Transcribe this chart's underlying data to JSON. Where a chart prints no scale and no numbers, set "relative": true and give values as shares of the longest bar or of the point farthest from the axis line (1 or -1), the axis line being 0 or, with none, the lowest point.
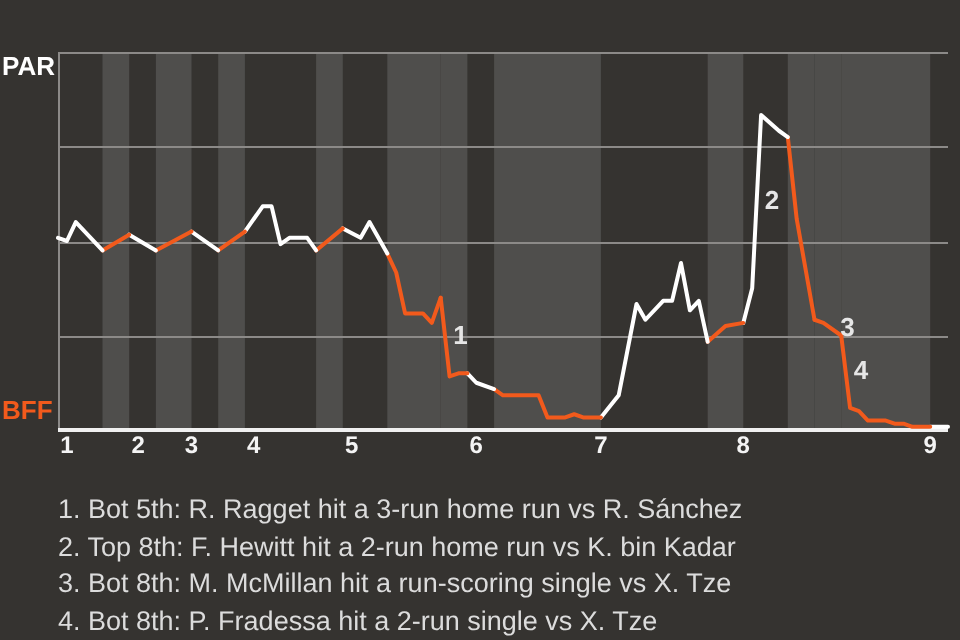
{
  "chart_data": {
    "type": "line",
    "relative": true,
    "categories": [
      null,
      "1",
      null,
      null,
      null,
      null,
      null,
      null,
      null,
      "2",
      null,
      null,
      null,
      null,
      null,
      "3",
      null,
      null,
      null,
      null,
      null,
      null,
      "4",
      null,
      null,
      null,
      null,
      null,
      null,
      null,
      null,
      null,
      null,
      "5",
      null,
      null,
      null,
      null,
      null,
      null,
      null,
      null,
      null,
      null,
      null,
      null,
      null,
      "6",
      null,
      null,
      null,
      null,
      null,
      null,
      null,
      null,
      null,
      null,
      null,
      null,
      null,
      "7",
      null,
      null,
      null,
      null,
      null,
      null,
      null,
      null,
      null,
      null,
      null,
      null,
      null,
      null,
      null,
      "8",
      null,
      null,
      null,
      null,
      null,
      null,
      null,
      null,
      null,
      null,
      null,
      null,
      null,
      null,
      null,
      null,
      null,
      null,
      null,
      null,
      "9",
      null,
      null
    ],
    "grid": "y",
    "legend": false,
    "marker": "none",
    "line_style": "solid",
    "series": [
      {
        "color": "#ffffff",
        "values": [
          0.61,
          0.6,
          0.66,
          null,
          null,
          0.57,
          null,
          null,
          null,
          null,
          null,
          null,
          null,
          null,
          null,
          null,
          null,
          null,
          null,
          null,
          null,
          null,
          null,
          null,
          null,
          null,
          null,
          null,
          null,
          null,
          null,
          null,
          null,
          null,
          null,
          null,
          null,
          null,
          null,
          null,
          null,
          null,
          null,
          null,
          null,
          null,
          null,
          null,
          null,
          null,
          null,
          null,
          null,
          null,
          null,
          null,
          null,
          null,
          null,
          null,
          null,
          null,
          null,
          null,
          null,
          null,
          null,
          null,
          null,
          null,
          null,
          null,
          null,
          null,
          null,
          null,
          null,
          null,
          null,
          null,
          null,
          null,
          null,
          null,
          null,
          null,
          null,
          null,
          null,
          null,
          null,
          null,
          null,
          null,
          null,
          null,
          null,
          null,
          null,
          null,
          null
        ]
      },
      {
        "color": "#f25a1c",
        "values": [
          null,
          null,
          null,
          null,
          null,
          0.57,
          null,
          null,
          0.62,
          null,
          null,
          null,
          null,
          null,
          null,
          null,
          null,
          null,
          null,
          null,
          null,
          null,
          null,
          null,
          null,
          null,
          null,
          null,
          null,
          null,
          null,
          null,
          null,
          null,
          null,
          null,
          null,
          null,
          null,
          null,
          null,
          null,
          null,
          null,
          null,
          null,
          null,
          null,
          null,
          null,
          null,
          null,
          null,
          null,
          null,
          null,
          null,
          null,
          null,
          null,
          null,
          null,
          null,
          null,
          null,
          null,
          null,
          null,
          null,
          null,
          null,
          null,
          null,
          null,
          null,
          null,
          null,
          null,
          null,
          null,
          null,
          null,
          null,
          null,
          null,
          null,
          null,
          null,
          null,
          null,
          null,
          null,
          null,
          null,
          null,
          null,
          null,
          null,
          null,
          null,
          null
        ]
      },
      {
        "color": "#ffffff",
        "values": [
          null,
          null,
          null,
          null,
          null,
          null,
          null,
          null,
          0.62,
          null,
          null,
          0.57,
          null,
          null,
          null,
          null,
          null,
          null,
          null,
          null,
          null,
          null,
          null,
          null,
          null,
          null,
          null,
          null,
          null,
          null,
          null,
          null,
          null,
          null,
          null,
          null,
          null,
          null,
          null,
          null,
          null,
          null,
          null,
          null,
          null,
          null,
          null,
          null,
          null,
          null,
          null,
          null,
          null,
          null,
          null,
          null,
          null,
          null,
          null,
          null,
          null,
          null,
          null,
          null,
          null,
          null,
          null,
          null,
          null,
          null,
          null,
          null,
          null,
          null,
          null,
          null,
          null,
          null,
          null,
          null,
          null,
          null,
          null,
          null,
          null,
          null,
          null,
          null,
          null,
          null,
          null,
          null,
          null,
          null,
          null,
          null,
          null,
          null,
          null,
          null,
          null
        ]
      },
      {
        "color": "#f25a1c",
        "values": [
          null,
          null,
          null,
          null,
          null,
          null,
          null,
          null,
          null,
          null,
          null,
          0.57,
          null,
          null,
          null,
          0.63,
          null,
          null,
          null,
          null,
          null,
          null,
          null,
          null,
          null,
          null,
          null,
          null,
          null,
          null,
          null,
          null,
          null,
          null,
          null,
          null,
          null,
          null,
          null,
          null,
          null,
          null,
          null,
          null,
          null,
          null,
          null,
          null,
          null,
          null,
          null,
          null,
          null,
          null,
          null,
          null,
          null,
          null,
          null,
          null,
          null,
          null,
          null,
          null,
          null,
          null,
          null,
          null,
          null,
          null,
          null,
          null,
          null,
          null,
          null,
          null,
          null,
          null,
          null,
          null,
          null,
          null,
          null,
          null,
          null,
          null,
          null,
          null,
          null,
          null,
          null,
          null,
          null,
          null,
          null,
          null,
          null,
          null,
          null,
          null,
          null
        ]
      },
      {
        "color": "#ffffff",
        "values": [
          null,
          null,
          null,
          null,
          null,
          null,
          null,
          null,
          null,
          null,
          null,
          null,
          null,
          null,
          null,
          0.63,
          null,
          null,
          0.57,
          null,
          null,
          null,
          null,
          null,
          null,
          null,
          null,
          null,
          null,
          null,
          null,
          null,
          null,
          null,
          null,
          null,
          null,
          null,
          null,
          null,
          null,
          null,
          null,
          null,
          null,
          null,
          null,
          null,
          null,
          null,
          null,
          null,
          null,
          null,
          null,
          null,
          null,
          null,
          null,
          null,
          null,
          null,
          null,
          null,
          null,
          null,
          null,
          null,
          null,
          null,
          null,
          null,
          null,
          null,
          null,
          null,
          null,
          null,
          null,
          null,
          null,
          null,
          null,
          null,
          null,
          null,
          null,
          null,
          null,
          null,
          null,
          null,
          null,
          null,
          null,
          null,
          null,
          null,
          null,
          null,
          null
        ]
      },
      {
        "color": "#f25a1c",
        "values": [
          null,
          null,
          null,
          null,
          null,
          null,
          null,
          null,
          null,
          null,
          null,
          null,
          null,
          null,
          null,
          null,
          null,
          null,
          0.57,
          null,
          null,
          0.63,
          null,
          null,
          null,
          null,
          null,
          null,
          null,
          null,
          null,
          null,
          null,
          null,
          null,
          null,
          null,
          null,
          null,
          null,
          null,
          null,
          null,
          null,
          null,
          null,
          null,
          null,
          null,
          null,
          null,
          null,
          null,
          null,
          null,
          null,
          null,
          null,
          null,
          null,
          null,
          null,
          null,
          null,
          null,
          null,
          null,
          null,
          null,
          null,
          null,
          null,
          null,
          null,
          null,
          null,
          null,
          null,
          null,
          null,
          null,
          null,
          null,
          null,
          null,
          null,
          null,
          null,
          null,
          null,
          null,
          null,
          null,
          null,
          null,
          null,
          null,
          null,
          null,
          null,
          null
        ]
      },
      {
        "color": "#ffffff",
        "values": [
          null,
          null,
          null,
          null,
          null,
          null,
          null,
          null,
          null,
          null,
          null,
          null,
          null,
          null,
          null,
          null,
          null,
          null,
          null,
          null,
          null,
          0.63,
          null,
          0.71,
          0.71,
          0.59,
          0.61,
          null,
          0.61,
          0.57,
          null,
          null,
          null,
          null,
          null,
          null,
          null,
          null,
          null,
          null,
          null,
          null,
          null,
          null,
          null,
          null,
          null,
          null,
          null,
          null,
          null,
          null,
          null,
          null,
          null,
          null,
          null,
          null,
          null,
          null,
          null,
          null,
          null,
          null,
          null,
          null,
          null,
          null,
          null,
          null,
          null,
          null,
          null,
          null,
          null,
          null,
          null,
          null,
          null,
          null,
          null,
          null,
          null,
          null,
          null,
          null,
          null,
          null,
          null,
          null,
          null,
          null,
          null,
          null,
          null,
          null,
          null,
          null,
          null,
          null,
          null
        ]
      },
      {
        "color": "#f25a1c",
        "values": [
          null,
          null,
          null,
          null,
          null,
          null,
          null,
          null,
          null,
          null,
          null,
          null,
          null,
          null,
          null,
          null,
          null,
          null,
          null,
          null,
          null,
          null,
          null,
          null,
          null,
          null,
          null,
          null,
          null,
          0.57,
          null,
          null,
          0.64,
          null,
          null,
          null,
          null,
          null,
          null,
          null,
          null,
          null,
          null,
          null,
          null,
          null,
          null,
          null,
          null,
          null,
          null,
          null,
          null,
          null,
          null,
          null,
          null,
          null,
          null,
          null,
          null,
          null,
          null,
          null,
          null,
          null,
          null,
          null,
          null,
          null,
          null,
          null,
          null,
          null,
          null,
          null,
          null,
          null,
          null,
          null,
          null,
          null,
          null,
          null,
          null,
          null,
          null,
          null,
          null,
          null,
          null,
          null,
          null,
          null,
          null,
          null,
          null,
          null,
          null,
          null,
          null
        ]
      },
      {
        "color": "#ffffff",
        "values": [
          null,
          null,
          null,
          null,
          null,
          null,
          null,
          null,
          null,
          null,
          null,
          null,
          null,
          null,
          null,
          null,
          null,
          null,
          null,
          null,
          null,
          null,
          null,
          null,
          null,
          null,
          null,
          null,
          null,
          null,
          null,
          null,
          0.64,
          null,
          0.61,
          0.66,
          null,
          0.56,
          null,
          null,
          null,
          null,
          null,
          null,
          null,
          null,
          null,
          null,
          null,
          null,
          null,
          null,
          null,
          null,
          null,
          null,
          null,
          null,
          null,
          null,
          null,
          null,
          null,
          null,
          null,
          null,
          null,
          null,
          null,
          null,
          null,
          null,
          null,
          null,
          null,
          null,
          null,
          null,
          null,
          null,
          null,
          null,
          null,
          null,
          null,
          null,
          null,
          null,
          null,
          null,
          null,
          null,
          null,
          null,
          null,
          null,
          null,
          null,
          null,
          null,
          null
        ]
      },
      {
        "color": "#f25a1c",
        "values": [
          null,
          null,
          null,
          null,
          null,
          null,
          null,
          null,
          null,
          null,
          null,
          null,
          null,
          null,
          null,
          null,
          null,
          null,
          null,
          null,
          null,
          null,
          null,
          null,
          null,
          null,
          null,
          null,
          null,
          null,
          null,
          null,
          null,
          null,
          null,
          null,
          null,
          0.56,
          0.5,
          0.37,
          null,
          0.37,
          0.34,
          0.42,
          null,
          null,
          null,
          null,
          null,
          null,
          null,
          null,
          null,
          null,
          null,
          null,
          null,
          null,
          null,
          null,
          null,
          null,
          null,
          null,
          null,
          null,
          null,
          null,
          null,
          null,
          null,
          null,
          null,
          null,
          null,
          null,
          null,
          null,
          null,
          null,
          null,
          null,
          null,
          null,
          null,
          null,
          null,
          null,
          null,
          null,
          null,
          null,
          null,
          null,
          null,
          null,
          null,
          null,
          null,
          null,
          null
        ]
      },
      {
        "name": "1",
        "color": "#f25a1c",
        "values": [
          null,
          null,
          null,
          null,
          null,
          null,
          null,
          null,
          null,
          null,
          null,
          null,
          null,
          null,
          null,
          null,
          null,
          null,
          null,
          null,
          null,
          null,
          null,
          null,
          null,
          null,
          null,
          null,
          null,
          null,
          null,
          null,
          null,
          null,
          null,
          null,
          null,
          null,
          null,
          null,
          null,
          null,
          null,
          0.42,
          0.17,
          0.18,
          0.18,
          null,
          null,
          null,
          null,
          null,
          null,
          null,
          null,
          null,
          null,
          null,
          null,
          null,
          null,
          null,
          null,
          null,
          null,
          null,
          null,
          null,
          null,
          null,
          null,
          null,
          null,
          null,
          null,
          null,
          null,
          null,
          null,
          null,
          null,
          null,
          null,
          null,
          null,
          null,
          null,
          null,
          null,
          null,
          null,
          null,
          null,
          null,
          null,
          null,
          null,
          null,
          null,
          null,
          null
        ]
      },
      {
        "color": "#ffffff",
        "values": [
          null,
          null,
          null,
          null,
          null,
          null,
          null,
          null,
          null,
          null,
          null,
          null,
          null,
          null,
          null,
          null,
          null,
          null,
          null,
          null,
          null,
          null,
          null,
          null,
          null,
          null,
          null,
          null,
          null,
          null,
          null,
          null,
          null,
          null,
          null,
          null,
          null,
          null,
          null,
          null,
          null,
          null,
          null,
          null,
          null,
          null,
          0.18,
          0.15,
          null,
          0.13,
          null,
          null,
          null,
          null,
          null,
          null,
          null,
          null,
          null,
          null,
          null,
          null,
          null,
          null,
          null,
          null,
          null,
          null,
          null,
          null,
          null,
          null,
          null,
          null,
          null,
          null,
          null,
          null,
          null,
          null,
          null,
          null,
          null,
          null,
          null,
          null,
          null,
          null,
          null,
          null,
          null,
          null,
          null,
          null,
          null,
          null,
          null,
          null,
          null,
          null,
          null
        ]
      },
      {
        "color": "#f25a1c",
        "values": [
          null,
          null,
          null,
          null,
          null,
          null,
          null,
          null,
          null,
          null,
          null,
          null,
          null,
          null,
          null,
          null,
          null,
          null,
          null,
          null,
          null,
          null,
          null,
          null,
          null,
          null,
          null,
          null,
          null,
          null,
          null,
          null,
          null,
          null,
          null,
          null,
          null,
          null,
          null,
          null,
          null,
          null,
          null,
          null,
          null,
          null,
          null,
          null,
          null,
          0.13,
          0.11,
          null,
          null,
          null,
          0.11,
          0.04,
          null,
          0.04,
          0.05,
          0.04,
          null,
          0.04,
          null,
          null,
          null,
          null,
          null,
          null,
          null,
          null,
          null,
          null,
          null,
          null,
          null,
          null,
          null,
          null,
          null,
          null,
          null,
          null,
          null,
          null,
          null,
          null,
          null,
          null,
          null,
          null,
          null,
          null,
          null,
          null,
          null,
          null,
          null,
          null,
          null,
          null,
          null
        ]
      },
      {
        "color": "#ffffff",
        "values": [
          null,
          null,
          null,
          null,
          null,
          null,
          null,
          null,
          null,
          null,
          null,
          null,
          null,
          null,
          null,
          null,
          null,
          null,
          null,
          null,
          null,
          null,
          null,
          null,
          null,
          null,
          null,
          null,
          null,
          null,
          null,
          null,
          null,
          null,
          null,
          null,
          null,
          null,
          null,
          null,
          null,
          null,
          null,
          null,
          null,
          null,
          null,
          null,
          null,
          null,
          null,
          null,
          null,
          null,
          null,
          null,
          null,
          null,
          null,
          null,
          null,
          0.04,
          null,
          0.11,
          null,
          0.4,
          0.35,
          null,
          0.41,
          0.41,
          0.53,
          0.38,
          0.41,
          0.28,
          null,
          null,
          null,
          null,
          null,
          null,
          null,
          null,
          null,
          null,
          null,
          null,
          null,
          null,
          null,
          null,
          null,
          null,
          null,
          null,
          null,
          null,
          null,
          null,
          null,
          null,
          null
        ]
      },
      {
        "color": "#f25a1c",
        "values": [
          null,
          null,
          null,
          null,
          null,
          null,
          null,
          null,
          null,
          null,
          null,
          null,
          null,
          null,
          null,
          null,
          null,
          null,
          null,
          null,
          null,
          null,
          null,
          null,
          null,
          null,
          null,
          null,
          null,
          null,
          null,
          null,
          null,
          null,
          null,
          null,
          null,
          null,
          null,
          null,
          null,
          null,
          null,
          null,
          null,
          null,
          null,
          null,
          null,
          null,
          null,
          null,
          null,
          null,
          null,
          null,
          null,
          null,
          null,
          null,
          null,
          null,
          null,
          null,
          null,
          null,
          null,
          null,
          null,
          null,
          null,
          null,
          null,
          0.28,
          null,
          0.33,
          null,
          0.34,
          null,
          null,
          null,
          null,
          null,
          null,
          null,
          null,
          null,
          null,
          null,
          null,
          null,
          null,
          null,
          null,
          null,
          null,
          null,
          null,
          null,
          null,
          null
        ]
      },
      {
        "name": "2",
        "color": "#ffffff",
        "values": [
          null,
          null,
          null,
          null,
          null,
          null,
          null,
          null,
          null,
          null,
          null,
          null,
          null,
          null,
          null,
          null,
          null,
          null,
          null,
          null,
          null,
          null,
          null,
          null,
          null,
          null,
          null,
          null,
          null,
          null,
          null,
          null,
          null,
          null,
          null,
          null,
          null,
          null,
          null,
          null,
          null,
          null,
          null,
          null,
          null,
          null,
          null,
          null,
          null,
          null,
          null,
          null,
          null,
          null,
          null,
          null,
          null,
          null,
          null,
          null,
          null,
          null,
          null,
          null,
          null,
          null,
          null,
          null,
          null,
          null,
          null,
          null,
          null,
          null,
          null,
          null,
          null,
          0.34,
          0.45,
          1,
          null,
          0.95,
          0.93,
          null,
          null,
          null,
          null,
          null,
          null,
          null,
          null,
          null,
          null,
          null,
          null,
          null,
          null,
          null,
          null,
          null,
          null
        ]
      },
      {
        "color": "#f25a1c",
        "values": [
          null,
          null,
          null,
          null,
          null,
          null,
          null,
          null,
          null,
          null,
          null,
          null,
          null,
          null,
          null,
          null,
          null,
          null,
          null,
          null,
          null,
          null,
          null,
          null,
          null,
          null,
          null,
          null,
          null,
          null,
          null,
          null,
          null,
          null,
          null,
          null,
          null,
          null,
          null,
          null,
          null,
          null,
          null,
          null,
          null,
          null,
          null,
          null,
          null,
          null,
          null,
          null,
          null,
          null,
          null,
          null,
          null,
          null,
          null,
          null,
          null,
          null,
          null,
          null,
          null,
          null,
          null,
          null,
          null,
          null,
          null,
          null,
          null,
          null,
          null,
          null,
          null,
          null,
          null,
          null,
          null,
          null,
          0.93,
          0.67,
          null,
          0.35,
          null,
          null,
          null,
          null,
          null,
          null,
          null,
          null,
          null,
          null,
          null,
          null,
          null,
          null,
          null
        ]
      },
      {
        "name": "3",
        "color": "#f25a1c",
        "values": [
          null,
          null,
          null,
          null,
          null,
          null,
          null,
          null,
          null,
          null,
          null,
          null,
          null,
          null,
          null,
          null,
          null,
          null,
          null,
          null,
          null,
          null,
          null,
          null,
          null,
          null,
          null,
          null,
          null,
          null,
          null,
          null,
          null,
          null,
          null,
          null,
          null,
          null,
          null,
          null,
          null,
          null,
          null,
          null,
          null,
          null,
          null,
          null,
          null,
          null,
          null,
          null,
          null,
          null,
          null,
          null,
          null,
          null,
          null,
          null,
          null,
          null,
          null,
          null,
          null,
          null,
          null,
          null,
          null,
          null,
          null,
          null,
          null,
          null,
          null,
          null,
          null,
          null,
          null,
          null,
          null,
          null,
          null,
          null,
          null,
          0.35,
          0.34,
          null,
          0.3,
          null,
          null,
          null,
          null,
          null,
          null,
          null,
          null,
          null,
          null,
          null,
          null
        ]
      },
      {
        "name": "4",
        "color": "#f25a1c",
        "values": [
          null,
          null,
          null,
          null,
          null,
          null,
          null,
          null,
          null,
          null,
          null,
          null,
          null,
          null,
          null,
          null,
          null,
          null,
          null,
          null,
          null,
          null,
          null,
          null,
          null,
          null,
          null,
          null,
          null,
          null,
          null,
          null,
          null,
          null,
          null,
          null,
          null,
          null,
          null,
          null,
          null,
          null,
          null,
          null,
          null,
          null,
          null,
          null,
          null,
          null,
          null,
          null,
          null,
          null,
          null,
          null,
          null,
          null,
          null,
          null,
          null,
          null,
          null,
          null,
          null,
          null,
          null,
          null,
          null,
          null,
          null,
          null,
          null,
          null,
          null,
          null,
          null,
          null,
          null,
          null,
          null,
          null,
          null,
          null,
          null,
          null,
          null,
          null,
          0.3,
          0.07,
          0.06,
          0.03,
          null,
          0.03,
          0.02,
          0.02,
          0.01,
          null,
          0.01,
          null,
          null
        ]
      },
      {
        "color": "#ffffff",
        "values": [
          null,
          null,
          null,
          null,
          null,
          null,
          null,
          null,
          null,
          null,
          null,
          null,
          null,
          null,
          null,
          null,
          null,
          null,
          null,
          null,
          null,
          null,
          null,
          null,
          null,
          null,
          null,
          null,
          null,
          null,
          null,
          null,
          null,
          null,
          null,
          null,
          null,
          null,
          null,
          null,
          null,
          null,
          null,
          null,
          null,
          null,
          null,
          null,
          null,
          null,
          null,
          null,
          null,
          null,
          null,
          null,
          null,
          null,
          null,
          null,
          null,
          null,
          null,
          null,
          null,
          null,
          null,
          null,
          null,
          null,
          null,
          null,
          null,
          null,
          null,
          null,
          null,
          null,
          null,
          null,
          null,
          null,
          null,
          null,
          null,
          null,
          null,
          null,
          null,
          null,
          null,
          null,
          null,
          null,
          null,
          null,
          null,
          null,
          0.01,
          null,
          0.01
        ]
      }
    ],
    "annotations": [
      "PAR",
      "BFF",
      "1. Bot 5th: R. Ragget hit a 3-run home run vs R. Sánchez",
      "2. Top 8th: F. Hewitt hit a 2-run home run vs K. bin Kadar",
      "3. Bot 8th: M. McMillan hit a run-scoring single vs X. Tze",
      "4. Bot 8th: P. Fradessa hit a 2-run single vs X. Tze"
    ]
  }
}
